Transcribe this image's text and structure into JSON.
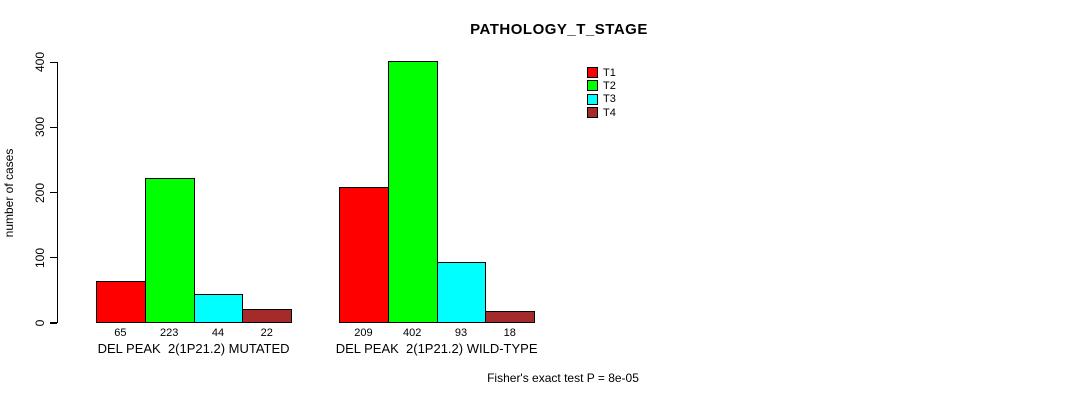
{
  "chart_data": {
    "type": "bar",
    "title": "PATHOLOGY_T_STAGE",
    "ylabel": "number of cases",
    "xlabel": "",
    "categories": [
      "DEL PEAK  2(1P21.2) MUTATED",
      "DEL PEAK  2(1P21.2) WILD-TYPE"
    ],
    "series": [
      {
        "name": "T1",
        "color": "#FF0000",
        "values": [
          65,
          209
        ]
      },
      {
        "name": "T2",
        "color": "#00FF00",
        "values": [
          223,
          402
        ]
      },
      {
        "name": "T3",
        "color": "#00FFFF",
        "values": [
          44,
          93
        ]
      },
      {
        "name": "T4",
        "color": "#A52A2A",
        "values": [
          22,
          18
        ]
      }
    ],
    "ylim": [
      0,
      400
    ],
    "yticks": [
      0,
      100,
      200,
      300,
      400
    ],
    "grid": false,
    "legend_position": "top-right",
    "bar_value_labels_shown": true,
    "annotation": "Fisher's exact test P = 8e-05"
  },
  "colors": {
    "background": "#FFFFFF",
    "axis": "#000000",
    "text": "#000000"
  }
}
